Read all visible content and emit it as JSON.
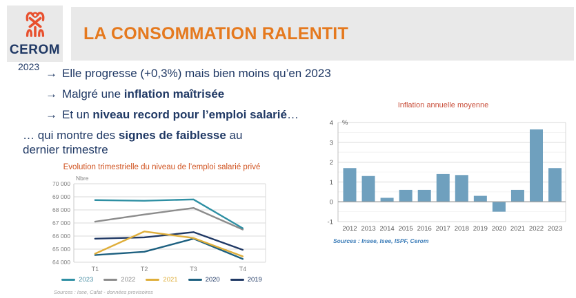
{
  "slide": {
    "logo": {
      "text": "CEROM",
      "icon": "cerom-tribal-icon",
      "icon_color": "#e8502e",
      "text_color": "#1f3864"
    },
    "title": "LA CONSOMMATION RALENTIT",
    "year_label": "2023",
    "arrow_char": "→",
    "bullets": [
      {
        "arrow": true,
        "segments": [
          {
            "t": "Elle progresse (+0,3%) mais bien moins qu’en 2023",
            "b": false
          }
        ]
      },
      {
        "arrow": true,
        "segments": [
          {
            "t": "Malgré une ",
            "b": false
          },
          {
            "t": "inflation maîtrisée",
            "b": true
          }
        ]
      },
      {
        "arrow": true,
        "segments": [
          {
            "t": "Et un ",
            "b": false
          },
          {
            "t": "niveau record pour l’emploi salarié",
            "b": true
          },
          {
            "t": "…",
            "b": false
          }
        ]
      },
      {
        "arrow": false,
        "segments": [
          {
            "t": "… qui montre des ",
            "b": false
          },
          {
            "t": "signes de faiblesse",
            "b": true
          },
          {
            "t": " au dernier trimestre",
            "b": false
          }
        ]
      }
    ],
    "colors": {
      "header_bg": "#e9e9e9",
      "title_orange": "#e5791e",
      "body_navy": "#1f3864",
      "line_chart_title": "#d0521f",
      "bar_chart_title": "#c9503c",
      "bar_source_blue": "#3b7cb8"
    }
  },
  "chart_data": [
    {
      "type": "line",
      "title": "Evolution trimestrielle du niveau de l’emploi salarié privé",
      "ylabel": "Nbre",
      "categories": [
        "T1",
        "T2",
        "T3",
        "T4"
      ],
      "ylim": [
        64000,
        70000
      ],
      "ytick_step": 1000,
      "grid": true,
      "legend_position": "bottom",
      "series": [
        {
          "name": "2023",
          "color": "#2e8fa3",
          "label_color": "#4a8fa5",
          "values": [
            68750,
            68700,
            68800,
            66600
          ]
        },
        {
          "name": "2022",
          "color": "#8c8c8c",
          "label_color": "#8c8c8c",
          "values": [
            67100,
            67650,
            68150,
            66500
          ]
        },
        {
          "name": "2021",
          "color": "#dfae3a",
          "label_color": "#dfae3a",
          "values": [
            64650,
            66350,
            65850,
            64450
          ]
        },
        {
          "name": "2020",
          "color": "#1d6080",
          "label_color": "#1f3864",
          "values": [
            64550,
            64800,
            65800,
            64250
          ]
        },
        {
          "name": "2019",
          "color": "#1f3864",
          "label_color": "#1f3864",
          "values": [
            65800,
            65900,
            66300,
            64950
          ]
        }
      ],
      "source": "Sources : Isee, Cafat - données provisoires"
    },
    {
      "type": "bar",
      "title": "Inflation annuelle moyenne",
      "ylabel": "%",
      "categories": [
        "2012",
        "2013",
        "2014",
        "2015",
        "2016",
        "2017",
        "2018",
        "2019",
        "2020",
        "2021",
        "2022",
        "2023"
      ],
      "values": [
        1.7,
        1.3,
        0.2,
        0.6,
        0.6,
        1.4,
        1.35,
        0.3,
        -0.5,
        0.6,
        3.65,
        1.7
      ],
      "ylim": [
        -1,
        4
      ],
      "ytick_step": 1,
      "grid": true,
      "bar_color": "#6fa0be",
      "source": "Sources : Insee, Isee, ISPF, Cerom"
    }
  ]
}
